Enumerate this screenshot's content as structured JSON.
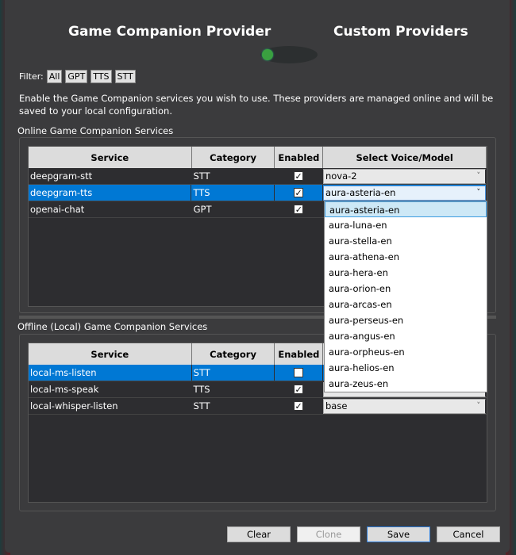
{
  "title": {
    "left": "Game Companion Provider",
    "right": "Custom Providers"
  },
  "filter": {
    "label": "Filter:",
    "buttons": [
      "All",
      "GPT",
      "TTS",
      "STT"
    ]
  },
  "description": "Enable the Game Companion services you wish to use. These providers are managed online and will be saved to your local configuration.",
  "online": {
    "label": "Online Game Companion Services",
    "columns": [
      "Service",
      "Category",
      "Enabled",
      "Select Voice/Model"
    ],
    "rows": [
      {
        "service": "deepgram-stt",
        "category": "STT",
        "enabled": true,
        "model": "nova-2"
      },
      {
        "service": "deepgram-tts",
        "category": "TTS",
        "enabled": true,
        "model": "aura-asteria-en",
        "selected": true
      },
      {
        "service": "openai-chat",
        "category": "GPT",
        "enabled": true
      }
    ]
  },
  "dropdown": {
    "options": [
      "aura-asteria-en",
      "aura-luna-en",
      "aura-stella-en",
      "aura-athena-en",
      "aura-hera-en",
      "aura-orion-en",
      "aura-arcas-en",
      "aura-perseus-en",
      "aura-angus-en",
      "aura-orpheus-en",
      "aura-helios-en",
      "aura-zeus-en"
    ],
    "highlighted": "aura-asteria-en"
  },
  "offline": {
    "label": "Offline (Local) Game Companion Services",
    "columns": [
      "Service",
      "Category",
      "Enabled"
    ],
    "rows": [
      {
        "service": "local-ms-listen",
        "category": "STT",
        "enabled": false,
        "selected": true
      },
      {
        "service": "local-ms-speak",
        "category": "TTS",
        "enabled": true
      },
      {
        "service": "local-whisper-listen",
        "category": "STT",
        "enabled": true,
        "model": "base"
      }
    ]
  },
  "buttons": {
    "clear": "Clear",
    "clone": "Clone",
    "save": "Save",
    "cancel": "Cancel"
  },
  "colors": {
    "accent": "#0078d4",
    "toggle_knob": "#3aa040",
    "dialog_bg": "#3b3b3d"
  }
}
